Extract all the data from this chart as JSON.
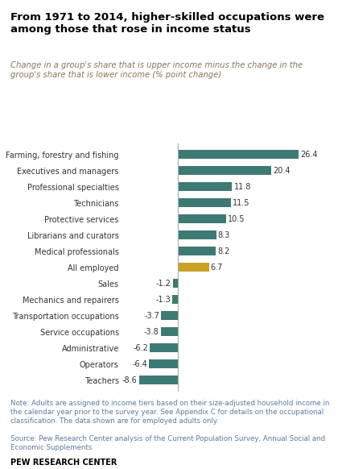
{
  "title": "From 1971 to 2014, higher-skilled occupations were\namong those that rose in income status",
  "subtitle": "Change in a group's share that is upper income minus the change in the\ngroup's share that is lower income (% point change)",
  "categories": [
    "Farming, forestry and fishing",
    "Executives and managers",
    "Professional specialties",
    "Technicians",
    "Protective services",
    "Librarians and curators",
    "Medical professionals",
    "All employed",
    "Sales",
    "Mechanics and repairers",
    "Transportation occupations",
    "Service occupations",
    "Administrative",
    "Operators",
    "Teachers"
  ],
  "values": [
    26.4,
    20.4,
    11.8,
    11.5,
    10.5,
    8.3,
    8.2,
    6.7,
    -1.2,
    -1.3,
    -3.7,
    -3.8,
    -6.2,
    -6.4,
    -8.6
  ],
  "bar_colors": [
    "#3d7a73",
    "#3d7a73",
    "#3d7a73",
    "#3d7a73",
    "#3d7a73",
    "#3d7a73",
    "#3d7a73",
    "#c9a227",
    "#3d7a73",
    "#3d7a73",
    "#3d7a73",
    "#3d7a73",
    "#3d7a73",
    "#3d7a73",
    "#3d7a73"
  ],
  "note": "Note: Adults are assigned to income tiers based on their size-adjusted household income in\nthe calendar year prior to the survey year. See Appendix C for details on the occupational\nclassification. The data shown are for employed adults only.",
  "source": "Source: Pew Research Center analysis of the Current Population Survey, Annual Social and\nEconomic Supplements",
  "branding": "PEW RESEARCH CENTER",
  "xlim": [
    -12,
    32
  ],
  "background_color": "#ffffff",
  "title_color": "#000000",
  "subtitle_color": "#8b7355",
  "note_color": "#5b7a9e",
  "teal_color": "#3d7a73",
  "gold_color": "#c9a227"
}
